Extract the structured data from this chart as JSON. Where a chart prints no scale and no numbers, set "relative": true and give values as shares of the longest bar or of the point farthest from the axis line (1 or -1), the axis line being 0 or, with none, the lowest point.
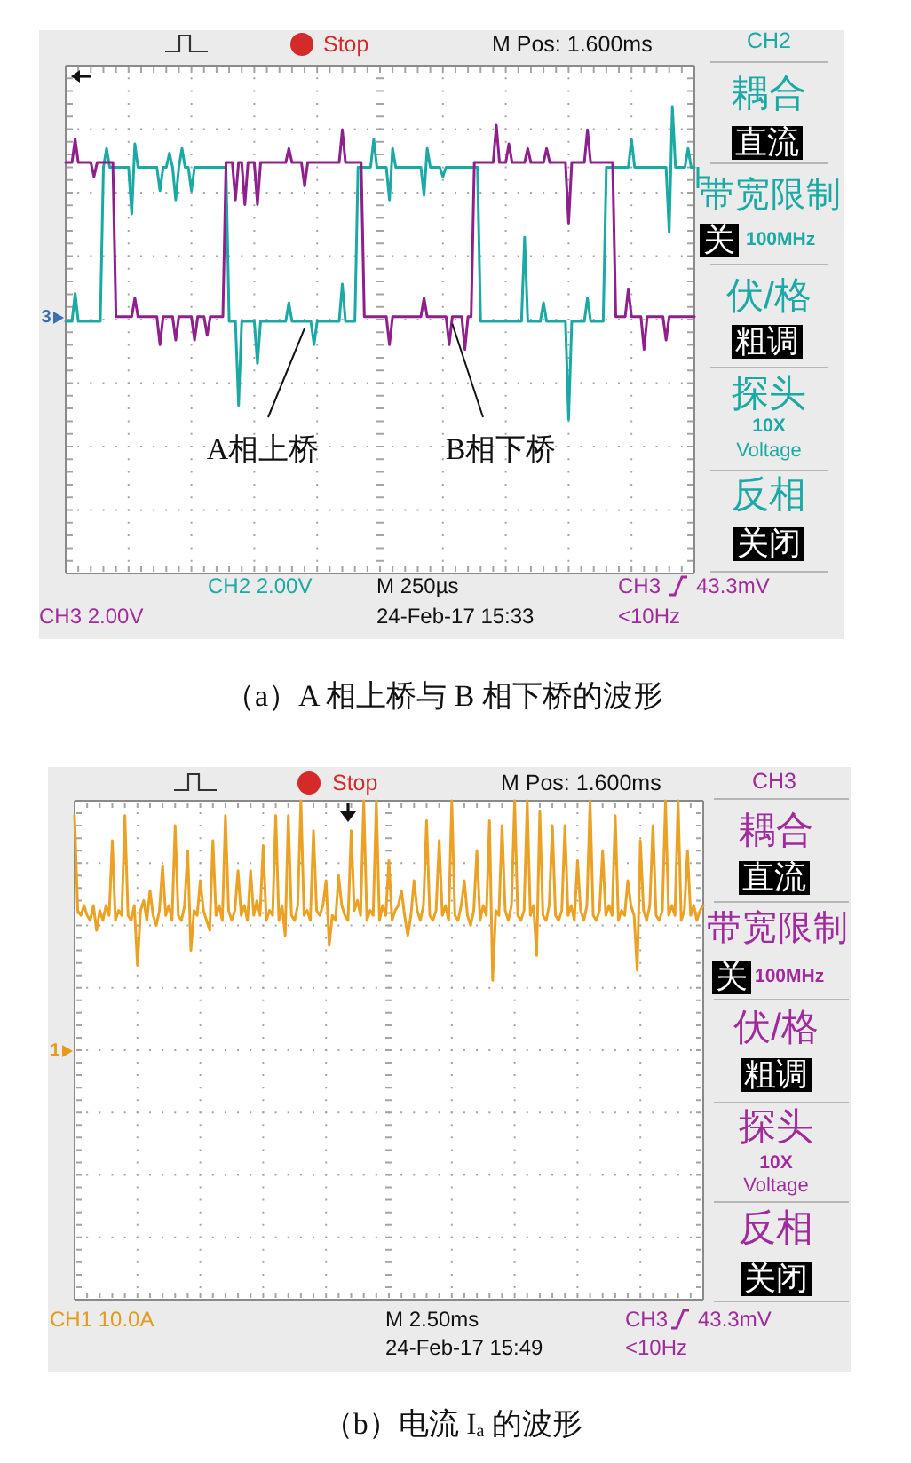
{
  "chart_data": [
    {
      "type": "line",
      "title": "（a）A 相上桥与 B 相下桥的波形",
      "relative": true,
      "grid": true,
      "categories": [
        null,
        null,
        null,
        null,
        null,
        null,
        null,
        null,
        null,
        null,
        null,
        null,
        null,
        null,
        null,
        null,
        null,
        null,
        null,
        null,
        null,
        null,
        null,
        null,
        null,
        null,
        null,
        null,
        null,
        null,
        null,
        null,
        null,
        null,
        null,
        null,
        null,
        null,
        null,
        null,
        null,
        null,
        null,
        null,
        null,
        null,
        null,
        null,
        null,
        null,
        null,
        null,
        null,
        null,
        null,
        null,
        null,
        null,
        null,
        null,
        null,
        null,
        null,
        null,
        null,
        null,
        null,
        null,
        null,
        null,
        null,
        null,
        null,
        null,
        null,
        null,
        null,
        null,
        null,
        null,
        null,
        null,
        null,
        null,
        null,
        null,
        null,
        null,
        null,
        null,
        null,
        null,
        null,
        null,
        null,
        null,
        null,
        null,
        null,
        null,
        null,
        null,
        null,
        null,
        null,
        null,
        null,
        null,
        null,
        null,
        null,
        null,
        null,
        null,
        null,
        null,
        null,
        null,
        null,
        null,
        null,
        null,
        null,
        null,
        null,
        null,
        null,
        null,
        null,
        null,
        null,
        null,
        null,
        null,
        null,
        null,
        null,
        null,
        null,
        null,
        null,
        null,
        null,
        null,
        null,
        null,
        null,
        null,
        null,
        null,
        null,
        null,
        null,
        null,
        null,
        null,
        null,
        null,
        null,
        null,
        null,
        null,
        null,
        null,
        null,
        null,
        null,
        null,
        null,
        null,
        null,
        null,
        null,
        null,
        null,
        null,
        null,
        null,
        null,
        null,
        null,
        null,
        null,
        null,
        null,
        null,
        null,
        null,
        null,
        null,
        null,
        null,
        null,
        null,
        null,
        null,
        null,
        null,
        null,
        null,
        null
      ],
      "series": [
        {
          "name": "A相上桥",
          "color": "#1aa9a4",
          "values": [
            0.54,
            0.54,
            0.54,
            0.6,
            0.54,
            0.54,
            0.54,
            0.54,
            0.54,
            0.54,
            0.54,
            0.54,
            0.87,
            0.91,
            0.87,
            0.87,
            0.87,
            0.87,
            0.87,
            0.87,
            0.87,
            0.77,
            0.92,
            0.87,
            0.87,
            0.87,
            0.87,
            0.87,
            0.87,
            0.87,
            0.82,
            0.87,
            0.87,
            0.9,
            0.87,
            0.8,
            0.87,
            0.91,
            0.87,
            0.87,
            0.82,
            0.87,
            0.87,
            0.87,
            0.87,
            0.87,
            0.87,
            0.87,
            0.87,
            0.87,
            0.87,
            0.87,
            0.54,
            0.54,
            0.54,
            0.36,
            0.54,
            0.54,
            0.54,
            0.54,
            0.54,
            0.45,
            0.54,
            0.54,
            0.54,
            0.54,
            0.54,
            0.54,
            0.54,
            0.54,
            0.54,
            0.58,
            0.54,
            0.54,
            0.54,
            0.54,
            0.54,
            0.54,
            0.54,
            0.49,
            0.54,
            0.54,
            0.54,
            0.54,
            0.54,
            0.54,
            0.54,
            0.54,
            0.62,
            0.54,
            0.54,
            0.54,
            0.54,
            0.87,
            0.87,
            0.87,
            0.87,
            0.87,
            0.93,
            0.87,
            0.87,
            0.87,
            0.87,
            0.8,
            0.91,
            0.87,
            0.87,
            0.87,
            0.87,
            0.87,
            0.87,
            0.87,
            0.87,
            0.87,
            0.81,
            0.91,
            0.87,
            0.87,
            0.87,
            0.87,
            0.85,
            0.87,
            0.87,
            0.87,
            0.87,
            0.87,
            0.87,
            0.87,
            0.87,
            0.87,
            0.87,
            0.87,
            0.54,
            0.54,
            0.54,
            0.54,
            0.54,
            0.54,
            0.54,
            0.54,
            0.54,
            0.54,
            0.54,
            0.54,
            0.54,
            0.54,
            0.72,
            0.54,
            0.54,
            0.54,
            0.54,
            0.54,
            0.58,
            0.54,
            0.54,
            0.54,
            0.54,
            0.54,
            0.54,
            0.54,
            0.33,
            0.54,
            0.54,
            0.54,
            0.54,
            0.54,
            0.59,
            0.54,
            0.54,
            0.54,
            0.54,
            0.54,
            0.87,
            0.87,
            0.87,
            0.87,
            0.87,
            0.87,
            0.87,
            0.87,
            0.93,
            0.87,
            0.87,
            0.87,
            0.87,
            0.87,
            0.87,
            0.87,
            0.87,
            0.87,
            0.87,
            0.87,
            0.73,
            1.0,
            0.87,
            0.87,
            0.87,
            0.87,
            0.91,
            0.87,
            0.87
          ]
        },
        {
          "name": "B相下桥",
          "color": "#8e1f8c",
          "values": [
            0.88,
            0.88,
            0.88,
            0.93,
            0.88,
            0.88,
            0.88,
            0.88,
            0.88,
            0.85,
            0.88,
            0.88,
            0.88,
            0.88,
            0.88,
            0.88,
            0.55,
            0.55,
            0.55,
            0.55,
            0.55,
            0.55,
            0.59,
            0.55,
            0.55,
            0.55,
            0.55,
            0.55,
            0.55,
            0.55,
            0.49,
            0.55,
            0.55,
            0.55,
            0.55,
            0.5,
            0.55,
            0.55,
            0.55,
            0.55,
            0.55,
            0.5,
            0.55,
            0.55,
            0.55,
            0.51,
            0.55,
            0.55,
            0.55,
            0.55,
            0.55,
            0.88,
            0.88,
            0.88,
            0.8,
            0.88,
            0.88,
            0.79,
            0.88,
            0.88,
            0.88,
            0.79,
            0.88,
            0.88,
            0.88,
            0.88,
            0.88,
            0.88,
            0.88,
            0.88,
            0.88,
            0.91,
            0.88,
            0.88,
            0.88,
            0.88,
            0.83,
            0.88,
            0.88,
            0.88,
            0.88,
            0.88,
            0.88,
            0.88,
            0.88,
            0.88,
            0.88,
            0.88,
            0.95,
            0.88,
            0.88,
            0.88,
            0.88,
            0.88,
            0.88,
            0.55,
            0.55,
            0.55,
            0.55,
            0.55,
            0.55,
            0.55,
            0.55,
            0.49,
            0.55,
            0.55,
            0.55,
            0.55,
            0.55,
            0.55,
            0.55,
            0.55,
            0.55,
            0.55,
            0.59,
            0.55,
            0.55,
            0.55,
            0.55,
            0.55,
            0.55,
            0.55,
            0.49,
            0.55,
            0.55,
            0.55,
            0.55,
            0.48,
            0.55,
            0.55,
            0.88,
            0.88,
            0.88,
            0.88,
            0.88,
            0.88,
            0.88,
            0.96,
            0.88,
            0.88,
            0.88,
            0.92,
            0.88,
            0.88,
            0.88,
            0.88,
            0.88,
            0.91,
            0.88,
            0.88,
            0.88,
            0.88,
            0.88,
            0.91,
            0.88,
            0.88,
            0.88,
            0.88,
            0.88,
            0.88,
            0.75,
            0.88,
            0.88,
            0.88,
            0.88,
            0.88,
            0.95,
            0.88,
            0.88,
            0.88,
            0.88,
            0.88,
            0.88,
            0.88,
            0.88,
            0.55,
            0.55,
            0.55,
            0.55,
            0.61,
            0.55,
            0.55,
            0.55,
            0.55,
            0.48,
            0.55,
            0.55,
            0.55,
            0.55,
            0.55,
            0.55,
            0.5,
            0.55,
            0.55,
            0.55,
            0.55,
            0.55,
            0.55,
            0.55,
            0.55,
            0.55
          ]
        }
      ],
      "annotations": [
        "Stop",
        "M Pos: 1.600ms",
        "CH2",
        "耦合",
        "直流",
        "带宽限制",
        "关",
        "100MHz",
        "伏/格",
        "粗调",
        "探头",
        "10X",
        "Voltage",
        "反相",
        "关闭",
        "CH2  2.00V",
        "CH3  2.00V",
        "M 250µs",
        "24-Feb-17 15:33",
        "CH3",
        "43.3mV",
        "<10Hz",
        "3"
      ]
    },
    {
      "type": "line",
      "title": "（b）电流 Iₐ 的波形",
      "relative": true,
      "grid": true,
      "categories": [
        null,
        null,
        null,
        null,
        null,
        null,
        null,
        null,
        null,
        null,
        null,
        null,
        null,
        null,
        null,
        null,
        null,
        null,
        null,
        null,
        null,
        null,
        null,
        null,
        null,
        null,
        null,
        null,
        null,
        null,
        null,
        null,
        null,
        null,
        null,
        null,
        null,
        null,
        null,
        null,
        null,
        null,
        null,
        null,
        null,
        null,
        null,
        null,
        null,
        null,
        null,
        null,
        null,
        null,
        null,
        null,
        null,
        null,
        null,
        null,
        null,
        null,
        null,
        null,
        null,
        null,
        null,
        null,
        null,
        null,
        null,
        null,
        null,
        null,
        null,
        null,
        null,
        null,
        null,
        null,
        null,
        null,
        null,
        null,
        null,
        null,
        null,
        null,
        null,
        null,
        null,
        null,
        null,
        null,
        null,
        null,
        null,
        null,
        null,
        null,
        null,
        null,
        null,
        null,
        null,
        null,
        null,
        null,
        null,
        null,
        null,
        null,
        null,
        null,
        null,
        null,
        null,
        null,
        null,
        null,
        null,
        null,
        null,
        null,
        null,
        null,
        null,
        null,
        null,
        null,
        null,
        null,
        null,
        null,
        null,
        null,
        null,
        null,
        null,
        null,
        null,
        null,
        null,
        null,
        null,
        null,
        null,
        null,
        null,
        null,
        null,
        null,
        null,
        null,
        null,
        null,
        null,
        null,
        null,
        null,
        null,
        null,
        null,
        null,
        null,
        null,
        null,
        null,
        null,
        null,
        null,
        null,
        null,
        null,
        null,
        null,
        null,
        null,
        null,
        null,
        null,
        null,
        null,
        null,
        null,
        null,
        null,
        null,
        null,
        null,
        null,
        null,
        null,
        null,
        null,
        null,
        null,
        null,
        null,
        null,
        null
      ],
      "series": [
        {
          "color": "#eba224",
          "values": [
            0.97,
            0.78,
            0.77,
            0.79,
            0.77,
            0.76,
            0.79,
            0.74,
            0.78,
            0.76,
            0.79,
            0.77,
            0.92,
            0.76,
            0.78,
            0.77,
            0.97,
            0.77,
            0.76,
            0.79,
            0.67,
            0.78,
            0.8,
            0.76,
            0.82,
            0.77,
            0.75,
            0.78,
            0.87,
            0.77,
            0.79,
            0.76,
            0.95,
            0.77,
            0.76,
            0.79,
            0.9,
            0.7,
            0.78,
            0.77,
            0.84,
            0.78,
            0.76,
            0.74,
            0.92,
            0.77,
            0.79,
            0.76,
            0.97,
            0.78,
            0.76,
            0.78,
            0.86,
            0.77,
            0.79,
            0.76,
            0.86,
            0.77,
            0.8,
            0.77,
            0.91,
            0.76,
            0.78,
            0.77,
            0.97,
            0.76,
            0.79,
            0.73,
            0.97,
            0.77,
            0.76,
            0.79,
            1.0,
            0.77,
            0.78,
            0.76,
            0.94,
            0.78,
            0.77,
            0.79,
            0.84,
            0.71,
            0.77,
            0.76,
            0.85,
            0.79,
            0.77,
            0.76,
            0.94,
            0.78,
            0.8,
            0.77,
            1.0,
            0.76,
            0.78,
            0.77,
            1.0,
            0.76,
            0.79,
            0.77,
            0.88,
            0.76,
            0.78,
            0.79,
            0.82,
            0.77,
            0.73,
            0.77,
            0.84,
            0.78,
            0.76,
            0.79,
            0.96,
            0.77,
            0.76,
            0.78,
            0.92,
            0.77,
            0.79,
            0.76,
            1.0,
            0.77,
            0.76,
            0.79,
            0.84,
            0.77,
            0.75,
            0.78,
            0.9,
            0.76,
            0.79,
            0.77,
            0.96,
            0.64,
            0.78,
            0.77,
            0.95,
            0.78,
            0.76,
            0.79,
            1.0,
            0.77,
            0.76,
            0.78,
            1.0,
            0.77,
            0.79,
            0.69,
            0.98,
            0.77,
            0.76,
            0.79,
            0.95,
            0.77,
            0.76,
            0.78,
            0.95,
            0.77,
            0.79,
            0.76,
            0.88,
            0.78,
            0.76,
            0.79,
            1.0,
            0.77,
            0.76,
            0.78,
            0.9,
            0.77,
            0.79,
            0.77,
            0.97,
            0.76,
            0.78,
            0.77,
            0.84,
            0.79,
            0.77,
            0.66,
            0.92,
            0.78,
            0.76,
            0.79,
            0.95,
            0.77,
            0.76,
            0.78,
            1.0,
            0.77,
            0.79,
            0.77,
            1.0,
            0.76,
            0.78,
            0.9,
            0.77,
            0.79,
            0.76,
            0.78,
            0.79
          ]
        }
      ],
      "annotations": [
        "Stop",
        "M Pos: 1.600ms",
        "CH3",
        "耦合",
        "直流",
        "带宽限制",
        "关",
        "100MHz",
        "伏/格",
        "粗调",
        "探头",
        "10X",
        "Voltage",
        "反相",
        "关闭",
        "CH1  10.0A",
        "M 2.50ms",
        "24-Feb-17 15:49",
        "CH3",
        "43.3mV",
        "<10Hz",
        "1"
      ]
    }
  ]
}
